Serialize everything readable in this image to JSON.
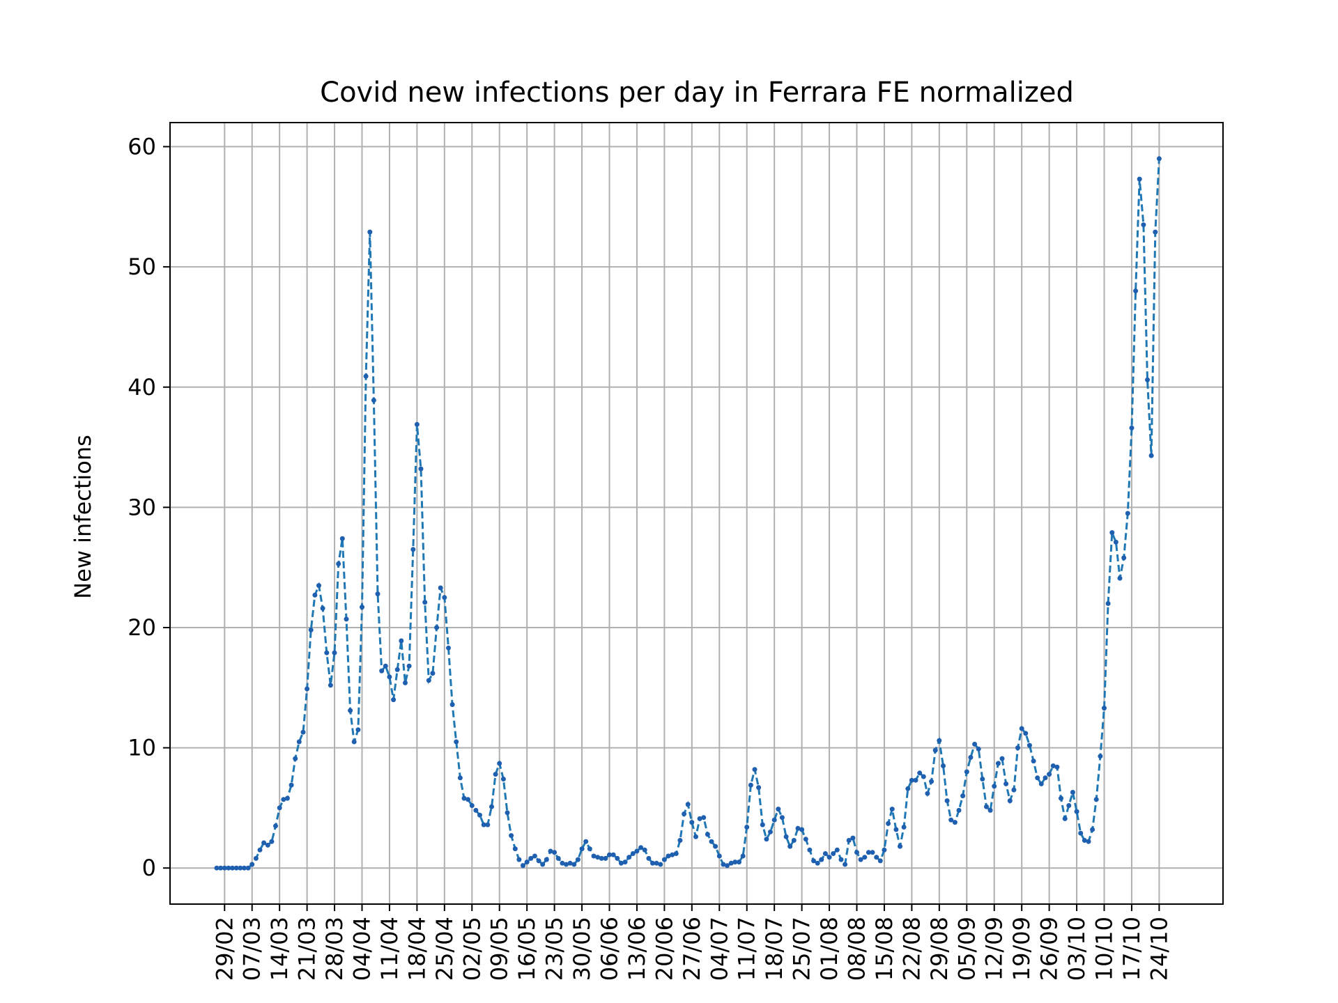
{
  "chart_data": {
    "type": "line",
    "title": "Covid new infections per day in Ferrara FE normalized",
    "xlabel": "",
    "ylabel": "New infections",
    "ylim": [
      -3,
      62
    ],
    "yticks": [
      0,
      10,
      20,
      30,
      40,
      50,
      60
    ],
    "grid": true,
    "colors": {
      "line": "#1f77b4",
      "marker": "#1f5fb0",
      "grid": "#b0b0b0",
      "axes": "#000000"
    },
    "x_start": "2020-02-27",
    "xticks": [
      "29/02",
      "07/03",
      "14/03",
      "21/03",
      "28/03",
      "04/04",
      "11/04",
      "18/04",
      "25/04",
      "02/05",
      "09/05",
      "16/05",
      "23/05",
      "30/05",
      "06/06",
      "13/06",
      "20/06",
      "27/06",
      "04/07",
      "11/07",
      "18/07",
      "25/07",
      "01/08",
      "08/08",
      "15/08",
      "22/08",
      "29/08",
      "05/09",
      "12/09",
      "19/09",
      "26/09",
      "03/10",
      "10/10",
      "17/10",
      "24/10"
    ],
    "series": [
      {
        "values": [
          0,
          0,
          0,
          0,
          0,
          0,
          0,
          0,
          0,
          0.3,
          0.8,
          1.5,
          2.1,
          1.9,
          2.2,
          3.5,
          5,
          5.7,
          5.8,
          6.9,
          9.1,
          10.5,
          11.3,
          14.9,
          19.8,
          22.7,
          23.5,
          21.6,
          17.9,
          15.2,
          17.9,
          25.3,
          27.4,
          20.7,
          13.1,
          10.5,
          11.5,
          21.7,
          40.9,
          52.9,
          38.9,
          22.8,
          16.4,
          16.8,
          15.9,
          14,
          16.5,
          18.9,
          15.4,
          16.8,
          26.5,
          36.9,
          33.2,
          22.1,
          15.6,
          16.2,
          20,
          23.3,
          22.5,
          18.3,
          13.6,
          10.5,
          7.5,
          5.8,
          5.7,
          5.2,
          4.8,
          4.4,
          3.6,
          3.6,
          5.1,
          7.8,
          8.7,
          7.4,
          4.6,
          2.7,
          1.6,
          0.7,
          0.2,
          0.5,
          0.8,
          1,
          0.6,
          0.3,
          0.7,
          1.4,
          1.3,
          0.8,
          0.4,
          0.3,
          0.4,
          0.3,
          0.7,
          1.6,
          2.2,
          1.6,
          1,
          0.9,
          0.8,
          0.8,
          1.1,
          1.1,
          0.8,
          0.4,
          0.5,
          0.9,
          1.2,
          1.4,
          1.7,
          1.5,
          0.8,
          0.4,
          0.4,
          0.3,
          0.7,
          1,
          1.1,
          1.2,
          2.3,
          4.5,
          5.3,
          3.8,
          2.6,
          4.1,
          4.2,
          2.8,
          2.2,
          1.8,
          1,
          0.3,
          0.2,
          0.4,
          0.5,
          0.5,
          1,
          3.4,
          6.9,
          8.2,
          6.7,
          3.6,
          2.4,
          3,
          4,
          4.9,
          4.2,
          2.6,
          1.8,
          2.3,
          3.3,
          3.2,
          2.4,
          1.5,
          0.6,
          0.4,
          0.7,
          1.2,
          0.9,
          1.2,
          1.5,
          0.7,
          0.3,
          2.3,
          2.5,
          1.3,
          0.7,
          0.9,
          1.3,
          1.3,
          0.9,
          0.6,
          1.5,
          3.7,
          4.9,
          3.2,
          1.8,
          3.4,
          6.6,
          7.3,
          7.3,
          7.9,
          7.6,
          6.2,
          7.2,
          9.8,
          10.6,
          8.5,
          5.6,
          4,
          3.8,
          4.8,
          6,
          8,
          9.2,
          10.3,
          9.9,
          7.4,
          5.1,
          4.8,
          6.8,
          8.7,
          9.1,
          7,
          5.6,
          6.5,
          10,
          11.6,
          11.2,
          10.2,
          8.9,
          7.5,
          7,
          7.5,
          7.8,
          8.5,
          8.4,
          5.8,
          4.1,
          5.2,
          6.3,
          4.7,
          2.9,
          2.3,
          2.2,
          3.2,
          5.7,
          9.3,
          13.3,
          22,
          27.9,
          27.1,
          24.1,
          25.8,
          29.5,
          36.6,
          48,
          57.3,
          53.5,
          40.6,
          34.3,
          52.9,
          59
        ]
      }
    ]
  }
}
